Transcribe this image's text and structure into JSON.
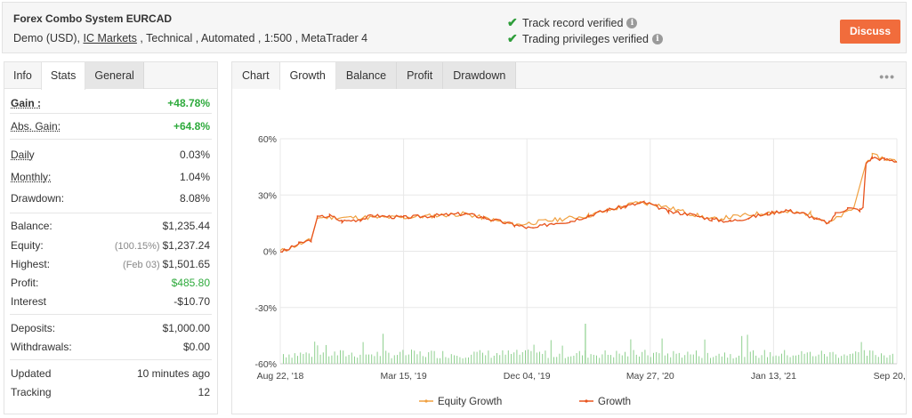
{
  "header": {
    "title": "Forex Combo System EURCAD",
    "meta_prefix": "Demo (USD), ",
    "broker": "IC Markets",
    "meta_suffix": " , Technical , Automated , 1:500 , MetaTrader 4",
    "verified_track": "Track record verified",
    "verified_trading": "Trading privileges verified",
    "discuss_label": "Discuss"
  },
  "left_tabs": [
    "Info",
    "Stats",
    "General"
  ],
  "stats": {
    "gain": {
      "label": "Gain :",
      "value": "+48.78%"
    },
    "abs_gain": {
      "label": "Abs. Gain:",
      "value": "+64.8%"
    },
    "daily": {
      "label": "Daily",
      "value": "0.03%"
    },
    "monthly": {
      "label": "Monthly:",
      "value": "1.04%"
    },
    "drawdown": {
      "label": "Drawdown:",
      "value": "8.08%"
    },
    "balance": {
      "label": "Balance:",
      "value": "$1,235.44"
    },
    "equity": {
      "label": "Equity:",
      "sub": "(100.15%)",
      "value": "$1,237.24"
    },
    "highest": {
      "label": "Highest:",
      "sub": "(Feb 03)",
      "value": "$1,501.65"
    },
    "profit": {
      "label": "Profit:",
      "value": "$485.80"
    },
    "interest": {
      "label": "Interest",
      "value": "-$10.70"
    },
    "deposits": {
      "label": "Deposits:",
      "value": "$1,000.00"
    },
    "withdrawals": {
      "label": "Withdrawals:",
      "value": "$0.00"
    },
    "updated": {
      "label": "Updated",
      "value": "10 minutes ago"
    },
    "tracking": {
      "label": "Tracking",
      "value": "12"
    }
  },
  "chart_tabs": [
    "Chart",
    "Growth",
    "Balance",
    "Profit",
    "Drawdown"
  ],
  "more_label": "•••",
  "colors": {
    "growth": "#e8541e",
    "equity_growth": "#f0a040",
    "volume_bars": "#8fd08f",
    "accent": "#f16c3c",
    "verified": "#2e9d3a"
  },
  "chart_data": {
    "type": "line",
    "ylim": [
      -60,
      60
    ],
    "yticks": [
      "60%",
      "30%",
      "0%",
      "-30%",
      "-60%"
    ],
    "xticks": [
      "Aug 22, '18",
      "Mar 15, '19",
      "Dec 04, '19",
      "May 27, '20",
      "Jan 13, '21",
      "Sep 20, '21"
    ],
    "series": [
      {
        "name": "Growth",
        "points": [
          [
            0,
            0
          ],
          [
            0.01,
            0.5
          ],
          [
            0.03,
            4
          ],
          [
            0.05,
            6
          ],
          [
            0.06,
            18
          ],
          [
            0.08,
            19
          ],
          [
            0.1,
            16
          ],
          [
            0.13,
            17
          ],
          [
            0.15,
            19
          ],
          [
            0.2,
            18
          ],
          [
            0.25,
            19
          ],
          [
            0.3,
            20
          ],
          [
            0.33,
            18
          ],
          [
            0.38,
            14
          ],
          [
            0.41,
            12
          ],
          [
            0.44,
            15
          ],
          [
            0.47,
            16
          ],
          [
            0.5,
            19
          ],
          [
            0.53,
            22
          ],
          [
            0.56,
            24
          ],
          [
            0.59,
            26
          ],
          [
            0.61,
            24
          ],
          [
            0.63,
            21
          ],
          [
            0.66,
            20
          ],
          [
            0.7,
            17
          ],
          [
            0.73,
            16
          ],
          [
            0.76,
            18
          ],
          [
            0.79,
            20
          ],
          [
            0.82,
            22
          ],
          [
            0.85,
            20
          ],
          [
            0.87,
            17
          ],
          [
            0.89,
            15
          ],
          [
            0.9,
            20
          ],
          [
            0.92,
            23
          ],
          [
            0.94,
            22
          ],
          [
            0.945,
            23
          ],
          [
            0.95,
            47
          ],
          [
            0.96,
            50
          ],
          [
            0.98,
            49
          ],
          [
            1.0,
            48
          ]
        ]
      },
      {
        "name": "Equity Growth",
        "points": [
          [
            0,
            0
          ],
          [
            0.05,
            6
          ],
          [
            0.06,
            18
          ],
          [
            0.2,
            18
          ],
          [
            0.3,
            20
          ],
          [
            0.38,
            14
          ],
          [
            0.5,
            19
          ],
          [
            0.58,
            26
          ],
          [
            0.61,
            25
          ],
          [
            0.7,
            17
          ],
          [
            0.8,
            21
          ],
          [
            0.86,
            20
          ],
          [
            0.89,
            15
          ],
          [
            0.93,
            23
          ],
          [
            0.95,
            47
          ],
          [
            0.96,
            51
          ],
          [
            1.0,
            48
          ]
        ]
      }
    ],
    "legend": [
      "Equity Growth",
      "Growth"
    ],
    "legend_position": "bottom"
  }
}
